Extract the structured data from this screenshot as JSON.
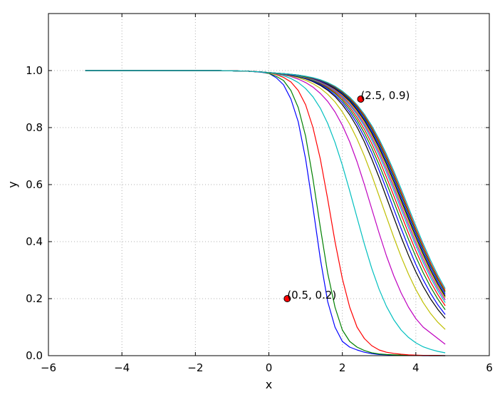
{
  "chart_data": {
    "type": "line",
    "xlabel": "x",
    "ylabel": "y",
    "xlim": [
      -6,
      6
    ],
    "ylim": [
      0.0,
      1.2
    ],
    "x_ticks": [
      -6,
      -4,
      -2,
      0,
      2,
      4,
      6
    ],
    "x_tick_labels": [
      "−6",
      "−4",
      "−2",
      "0",
      "2",
      "4",
      "6"
    ],
    "y_ticks": [
      0.0,
      0.2,
      0.4,
      0.6,
      0.8,
      1.0
    ],
    "y_tick_labels": [
      "0.0",
      "0.2",
      "0.4",
      "0.6",
      "0.8",
      "1.0"
    ],
    "grid": true,
    "legend": "none",
    "x": [
      -5.0,
      -4.6,
      -4.2,
      -3.8,
      -3.4,
      -3.0,
      -2.6,
      -2.2,
      -1.8,
      -1.4,
      -1.0,
      -0.6,
      -0.2,
      0.0,
      0.2,
      0.4,
      0.6,
      0.8,
      1.0,
      1.2,
      1.4,
      1.6,
      1.8,
      2.0,
      2.2,
      2.4,
      2.6,
      2.8,
      3.0,
      3.2,
      3.4,
      3.6,
      3.8,
      4.0,
      4.2,
      4.4,
      4.6,
      4.8
    ],
    "series": [
      {
        "color": "#0000ff",
        "values": [
          1.0,
          1.0,
          1.0,
          1.0,
          1.0,
          1.0,
          1.0,
          1.0,
          1.0,
          1.0,
          0.999,
          0.998,
          0.994,
          0.99,
          0.975,
          0.95,
          0.9,
          0.82,
          0.69,
          0.52,
          0.34,
          0.19,
          0.1,
          0.05,
          0.03,
          0.02,
          0.012,
          0.007,
          0.004,
          0.003,
          0.002,
          0.001,
          0.001,
          0.001,
          0.0,
          0.0,
          0.0,
          0.0
        ]
      },
      {
        "color": "#008000",
        "values": [
          1.0,
          1.0,
          1.0,
          1.0,
          1.0,
          1.0,
          1.0,
          1.0,
          1.0,
          1.0,
          0.999,
          0.998,
          0.995,
          0.99,
          0.98,
          0.965,
          0.93,
          0.87,
          0.77,
          0.62,
          0.45,
          0.29,
          0.17,
          0.09,
          0.05,
          0.03,
          0.018,
          0.01,
          0.006,
          0.004,
          0.003,
          0.002,
          0.001,
          0.001,
          0.001,
          0.0,
          0.0,
          0.0
        ]
      },
      {
        "color": "#ff0000",
        "values": [
          1.0,
          1.0,
          1.0,
          1.0,
          1.0,
          1.0,
          1.0,
          1.0,
          1.0,
          1.0,
          0.999,
          0.998,
          0.995,
          0.992,
          0.986,
          0.976,
          0.96,
          0.93,
          0.88,
          0.8,
          0.69,
          0.55,
          0.4,
          0.27,
          0.17,
          0.1,
          0.06,
          0.035,
          0.02,
          0.012,
          0.008,
          0.005,
          0.003,
          0.002,
          0.001,
          0.001,
          0.001,
          0.0
        ]
      },
      {
        "color": "#00bfbf",
        "values": [
          1.0,
          1.0,
          1.0,
          1.0,
          1.0,
          1.0,
          1.0,
          1.0,
          1.0,
          1.0,
          0.999,
          0.998,
          0.995,
          0.992,
          0.988,
          0.982,
          0.972,
          0.958,
          0.937,
          0.908,
          0.868,
          0.815,
          0.748,
          0.668,
          0.578,
          0.484,
          0.391,
          0.306,
          0.233,
          0.173,
          0.126,
          0.09,
          0.064,
          0.045,
          0.031,
          0.022,
          0.015,
          0.01
        ]
      },
      {
        "color": "#bf00bf",
        "values": [
          1.0,
          1.0,
          1.0,
          1.0,
          1.0,
          1.0,
          1.0,
          1.0,
          1.0,
          1.0,
          0.999,
          0.998,
          0.995,
          0.992,
          0.989,
          0.985,
          0.979,
          0.97,
          0.958,
          0.942,
          0.92,
          0.892,
          0.855,
          0.808,
          0.75,
          0.68,
          0.6,
          0.515,
          0.43,
          0.35,
          0.28,
          0.22,
          0.17,
          0.13,
          0.1,
          0.08,
          0.06,
          0.04
        ]
      },
      {
        "color": "#bfbf00",
        "values": [
          1.0,
          1.0,
          1.0,
          1.0,
          1.0,
          1.0,
          1.0,
          1.0,
          1.0,
          1.0,
          0.999,
          0.998,
          0.995,
          0.992,
          0.989,
          0.986,
          0.981,
          0.975,
          0.966,
          0.954,
          0.938,
          0.917,
          0.89,
          0.855,
          0.812,
          0.76,
          0.7,
          0.633,
          0.56,
          0.487,
          0.415,
          0.347,
          0.286,
          0.232,
          0.186,
          0.148,
          0.117,
          0.092
        ]
      },
      {
        "color": "#000000",
        "values": [
          1.0,
          1.0,
          1.0,
          1.0,
          1.0,
          1.0,
          1.0,
          1.0,
          1.0,
          1.0,
          0.999,
          0.998,
          0.995,
          0.993,
          0.99,
          0.987,
          0.983,
          0.978,
          0.971,
          0.961,
          0.948,
          0.931,
          0.909,
          0.88,
          0.845,
          0.802,
          0.75,
          0.69,
          0.625,
          0.555,
          0.485,
          0.416,
          0.352,
          0.294,
          0.243,
          0.199,
          0.162,
          0.131
        ]
      },
      {
        "color": "#0000ff",
        "values": [
          1.0,
          1.0,
          1.0,
          1.0,
          1.0,
          1.0,
          1.0,
          1.0,
          1.0,
          1.0,
          0.999,
          0.998,
          0.995,
          0.993,
          0.99,
          0.987,
          0.984,
          0.979,
          0.972,
          0.963,
          0.951,
          0.935,
          0.914,
          0.888,
          0.855,
          0.815,
          0.767,
          0.712,
          0.65,
          0.583,
          0.514,
          0.446,
          0.381,
          0.32,
          0.266,
          0.219,
          0.178,
          0.144
        ]
      },
      {
        "color": "#008000",
        "values": [
          1.0,
          1.0,
          1.0,
          1.0,
          1.0,
          1.0,
          1.0,
          1.0,
          1.0,
          1.0,
          0.999,
          0.998,
          0.995,
          0.993,
          0.99,
          0.988,
          0.985,
          0.98,
          0.974,
          0.965,
          0.954,
          0.939,
          0.92,
          0.895,
          0.864,
          0.826,
          0.781,
          0.729,
          0.67,
          0.606,
          0.54,
          0.473,
          0.408,
          0.347,
          0.291,
          0.241,
          0.198,
          0.161
        ]
      },
      {
        "color": "#ff0000",
        "values": [
          1.0,
          1.0,
          1.0,
          1.0,
          1.0,
          1.0,
          1.0,
          1.0,
          1.0,
          1.0,
          0.999,
          0.998,
          0.995,
          0.993,
          0.991,
          0.988,
          0.985,
          0.981,
          0.975,
          0.967,
          0.956,
          0.942,
          0.924,
          0.901,
          0.872,
          0.836,
          0.794,
          0.744,
          0.688,
          0.626,
          0.561,
          0.495,
          0.43,
          0.368,
          0.311,
          0.259,
          0.214,
          0.175
        ]
      },
      {
        "color": "#00bfbf",
        "values": [
          1.0,
          1.0,
          1.0,
          1.0,
          1.0,
          1.0,
          1.0,
          1.0,
          1.0,
          1.0,
          0.999,
          0.998,
          0.995,
          0.993,
          0.991,
          0.988,
          0.985,
          0.981,
          0.976,
          0.968,
          0.958,
          0.945,
          0.928,
          0.906,
          0.879,
          0.845,
          0.805,
          0.757,
          0.703,
          0.643,
          0.579,
          0.513,
          0.448,
          0.386,
          0.327,
          0.274,
          0.227,
          0.186
        ]
      },
      {
        "color": "#bf00bf",
        "values": [
          1.0,
          1.0,
          1.0,
          1.0,
          1.0,
          1.0,
          1.0,
          1.0,
          1.0,
          1.0,
          0.999,
          0.998,
          0.995,
          0.993,
          0.991,
          0.989,
          0.986,
          0.982,
          0.977,
          0.97,
          0.96,
          0.948,
          0.931,
          0.91,
          0.884,
          0.851,
          0.812,
          0.766,
          0.713,
          0.654,
          0.591,
          0.525,
          0.46,
          0.397,
          0.338,
          0.284,
          0.236,
          0.195
        ]
      },
      {
        "color": "#bfbf00",
        "values": [
          1.0,
          1.0,
          1.0,
          1.0,
          1.0,
          1.0,
          1.0,
          1.0,
          1.0,
          1.0,
          0.999,
          0.998,
          0.995,
          0.993,
          0.991,
          0.989,
          0.986,
          0.982,
          0.977,
          0.971,
          0.962,
          0.95,
          0.934,
          0.914,
          0.889,
          0.857,
          0.819,
          0.774,
          0.722,
          0.664,
          0.601,
          0.536,
          0.471,
          0.408,
          0.348,
          0.293,
          0.244,
          0.202
        ]
      },
      {
        "color": "#000000",
        "values": [
          1.0,
          1.0,
          1.0,
          1.0,
          1.0,
          1.0,
          1.0,
          1.0,
          1.0,
          1.0,
          0.999,
          0.998,
          0.995,
          0.993,
          0.991,
          0.989,
          0.986,
          0.983,
          0.978,
          0.972,
          0.963,
          0.951,
          0.936,
          0.917,
          0.893,
          0.862,
          0.825,
          0.781,
          0.73,
          0.673,
          0.611,
          0.546,
          0.481,
          0.417,
          0.357,
          0.301,
          0.251,
          0.208
        ]
      },
      {
        "color": "#0000ff",
        "values": [
          1.0,
          1.0,
          1.0,
          1.0,
          1.0,
          1.0,
          1.0,
          1.0,
          1.0,
          1.0,
          0.999,
          0.998,
          0.995,
          0.993,
          0.991,
          0.989,
          0.986,
          0.983,
          0.979,
          0.973,
          0.964,
          0.953,
          0.939,
          0.92,
          0.897,
          0.867,
          0.831,
          0.788,
          0.738,
          0.682,
          0.621,
          0.556,
          0.491,
          0.427,
          0.366,
          0.31,
          0.259,
          0.215
        ]
      },
      {
        "color": "#008000",
        "values": [
          1.0,
          1.0,
          1.0,
          1.0,
          1.0,
          1.0,
          1.0,
          1.0,
          1.0,
          1.0,
          0.999,
          0.998,
          0.995,
          0.993,
          0.991,
          0.989,
          0.987,
          0.984,
          0.979,
          0.974,
          0.966,
          0.955,
          0.941,
          0.923,
          0.9,
          0.872,
          0.837,
          0.795,
          0.746,
          0.691,
          0.63,
          0.566,
          0.501,
          0.436,
          0.375,
          0.318,
          0.267,
          0.222
        ]
      },
      {
        "color": "#ff0000",
        "values": [
          1.0,
          1.0,
          1.0,
          1.0,
          1.0,
          1.0,
          1.0,
          1.0,
          1.0,
          1.0,
          0.999,
          0.998,
          0.995,
          0.993,
          0.991,
          0.989,
          0.987,
          0.984,
          0.98,
          0.974,
          0.967,
          0.957,
          0.943,
          0.926,
          0.904,
          0.876,
          0.842,
          0.801,
          0.753,
          0.699,
          0.639,
          0.575,
          0.51,
          0.445,
          0.384,
          0.326,
          0.274,
          0.228
        ]
      },
      {
        "color": "#00bfbf",
        "values": [
          1.0,
          1.0,
          1.0,
          1.0,
          1.0,
          1.0,
          1.0,
          1.0,
          1.0,
          1.0,
          0.999,
          0.998,
          0.995,
          0.993,
          0.991,
          0.989,
          0.987,
          0.984,
          0.98,
          0.975,
          0.968,
          0.958,
          0.945,
          0.928,
          0.907,
          0.88,
          0.847,
          0.807,
          0.76,
          0.707,
          0.648,
          0.585,
          0.52,
          0.455,
          0.393,
          0.335,
          0.282,
          0.235
        ]
      }
    ],
    "annotations": [
      {
        "x": 2.5,
        "y": 0.9,
        "label": "(2.5, 0.9)",
        "marker_color": "#ff0000"
      },
      {
        "x": 0.5,
        "y": 0.2,
        "label": "(0.5, 0.2)",
        "marker_color": "#ff0000"
      }
    ]
  }
}
